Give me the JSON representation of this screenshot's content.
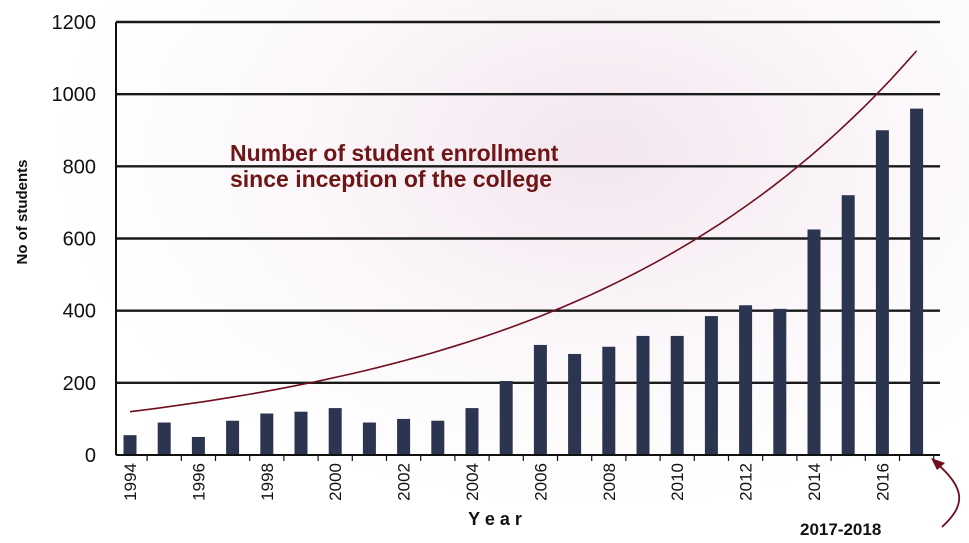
{
  "chart_data": {
    "type": "bar",
    "ylabel": "No of students",
    "xlabel": "Y e a r",
    "annotation_lines": [
      "Number of student enrollment",
      "since inception of the college"
    ],
    "callout": "2017-2018",
    "ylim": [
      0,
      1200
    ],
    "yticks": [
      0,
      200,
      400,
      600,
      800,
      1000,
      1200
    ],
    "x_tick_labels": [
      "1994",
      "1996",
      "1998",
      "2000",
      "2002",
      "2004",
      "2006",
      "2008",
      "2010",
      "2012",
      "2014",
      "2016"
    ],
    "categories": [
      "1994",
      "1995",
      "1996",
      "1997",
      "1998",
      "1999",
      "2000",
      "2001",
      "2002",
      "2003",
      "2004",
      "2005",
      "2006",
      "2007",
      "2008",
      "2009",
      "2010",
      "2011",
      "2012",
      "2013",
      "2014",
      "2015",
      "2016",
      "2017"
    ],
    "values": [
      55,
      90,
      50,
      95,
      115,
      120,
      130,
      90,
      100,
      95,
      130,
      205,
      305,
      280,
      300,
      330,
      330,
      385,
      415,
      405,
      625,
      720,
      900,
      960
    ],
    "trend_curve": {
      "x": [
        1994,
        2017
      ],
      "y": [
        120,
        1120
      ],
      "shape": "exponential"
    },
    "grid": true,
    "colors": {
      "bar": "#2c3550",
      "trend": "#6e0f1e",
      "annotation": "#6e1515",
      "axis": "#111111",
      "arrow": "#6e0f1e"
    }
  }
}
